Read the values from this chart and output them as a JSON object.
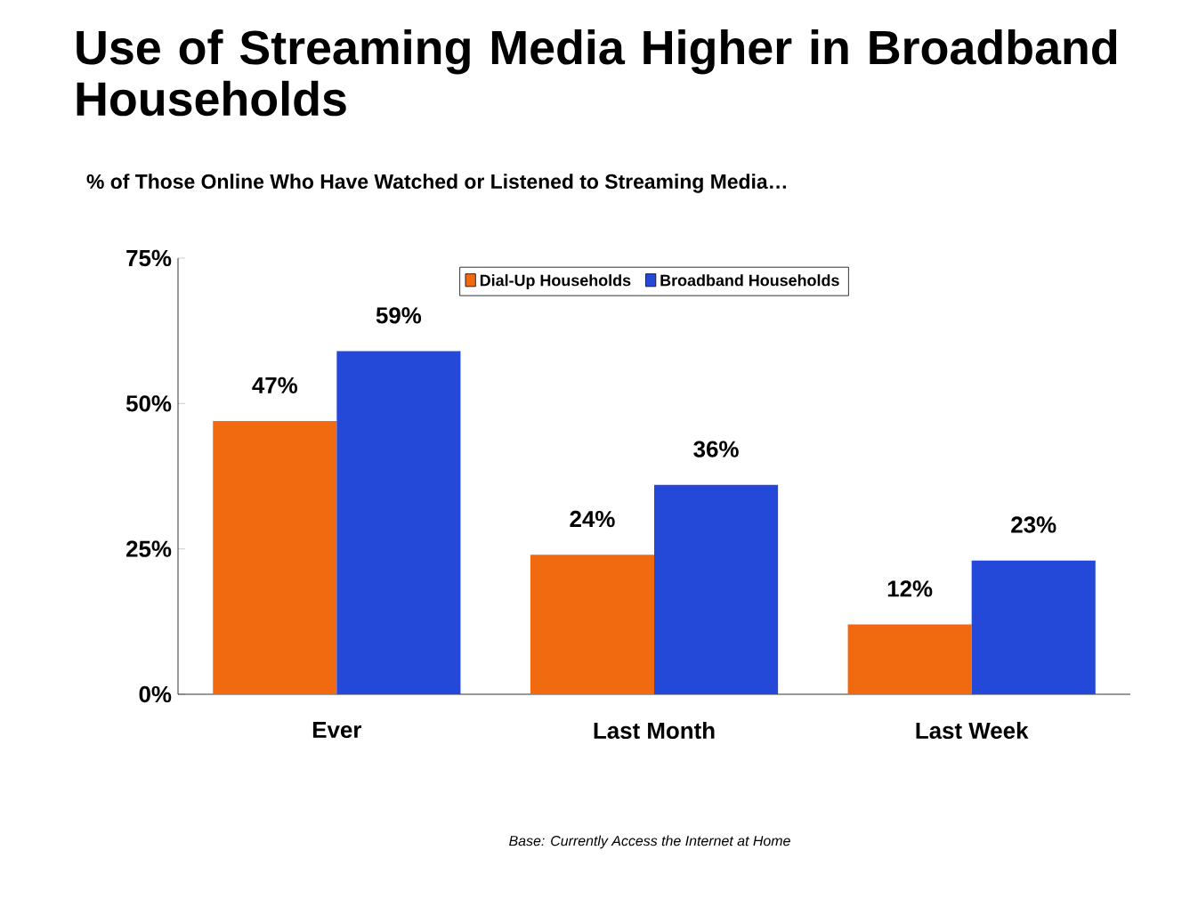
{
  "chart_data": {
    "type": "bar",
    "title": "Use of Streaming Media Higher in Broadband Households",
    "subtitle": "% of Those Online Who Have Watched or Listened to Streaming Media…",
    "categories": [
      "Ever",
      "Last Month",
      "Last Week"
    ],
    "series": [
      {
        "name": "Dial-Up Households",
        "color": "#f26a10",
        "values": [
          47,
          24,
          12
        ],
        "value_labels": [
          "47%",
          "24%",
          "12%"
        ]
      },
      {
        "name": "Broadband Households",
        "color": "#2448d8",
        "values": [
          59,
          36,
          23
        ],
        "value_labels": [
          "59%",
          "36%",
          "23%"
        ]
      }
    ],
    "ylim": [
      0,
      75
    ],
    "yticks": [
      {
        "value": 0,
        "label": "0%"
      },
      {
        "value": 25,
        "label": "25%"
      },
      {
        "value": 50,
        "label": "50%"
      },
      {
        "value": 75,
        "label": "75%"
      }
    ],
    "legend": "top",
    "grid": false,
    "annotations": [
      "Base: Currently Access the Internet at Home"
    ]
  }
}
